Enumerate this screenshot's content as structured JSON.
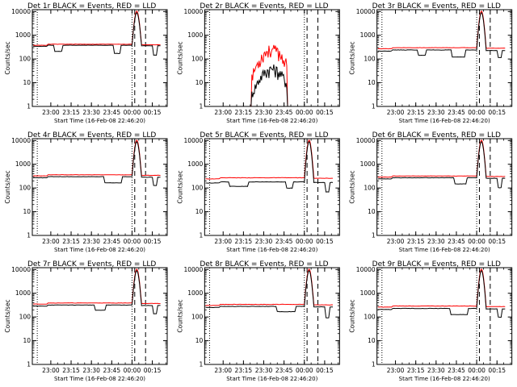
{
  "colors": {
    "events": "#000000",
    "lld": "#ff0000",
    "background": "#ffffff"
  },
  "chart_data": [
    {
      "type": "line",
      "title": "Det 1r  BLACK = Events, RED = LLD",
      "xlabel": "Start Time (16-Feb-08 22:46:20)",
      "ylabel": "Counts/sec",
      "log_y": true,
      "ylim": [
        1,
        12000
      ],
      "xlim": [
        "22:46:20",
        "00:26:00"
      ],
      "x_ticks": [
        "23:00",
        "23:15",
        "23:30",
        "23:45",
        "00:00",
        "00:15"
      ],
      "y_ticks": [
        "1",
        "10",
        "100",
        "1000",
        "10000"
      ],
      "series": [
        {
          "name": "Events",
          "color": "#000000"
        },
        {
          "name": "LLD",
          "color": "#ff0000"
        }
      ],
      "markers": {
        "dotted": [
          "22:50",
          "00:00"
        ],
        "dashed": [
          "00:02",
          "00:10"
        ]
      }
    },
    {
      "type": "line",
      "title": "Det 2r  BLACK = Events, RED = LLD",
      "xlabel": "Start Time (16-Feb-08 22:46:20)",
      "ylabel": "Counts/sec",
      "log_y": true,
      "ylim": [
        1,
        12000
      ],
      "xlim": [
        "22:46:20",
        "00:26:00"
      ],
      "x_ticks": [
        "23:00",
        "23:15",
        "23:30",
        "23:45",
        "00:00",
        "00:15"
      ],
      "y_ticks": [
        "1",
        "10",
        "100",
        "1000",
        "10000"
      ],
      "series": [
        {
          "name": "Events",
          "color": "#000000"
        },
        {
          "name": "LLD",
          "color": "#ff0000"
        }
      ],
      "markers": {
        "dotted": [
          "22:50",
          "00:00"
        ],
        "dashed": [
          "00:02",
          "00:10"
        ]
      }
    },
    {
      "type": "line",
      "title": "Det 3r  BLACK = Events, RED = LLD",
      "xlabel": "Start Time (16-Feb-08 22:46:20)",
      "ylabel": "Counts/sec",
      "log_y": true,
      "ylim": [
        1,
        12000
      ],
      "xlim": [
        "22:46:20",
        "00:26:00"
      ],
      "x_ticks": [
        "23:00",
        "23:15",
        "23:30",
        "23:45",
        "00:00",
        "00:15"
      ],
      "y_ticks": [
        "1",
        "10",
        "100",
        "1000",
        "10000"
      ],
      "series": [
        {
          "name": "Events",
          "color": "#000000"
        },
        {
          "name": "LLD",
          "color": "#ff0000"
        }
      ],
      "markers": {
        "dotted": [
          "22:50",
          "00:00"
        ],
        "dashed": [
          "00:02",
          "00:10"
        ]
      }
    },
    {
      "type": "line",
      "title": "Det 4r  BLACK = Events, RED = LLD",
      "xlabel": "Start Time (16-Feb-08 22:46:20)",
      "ylabel": "Counts/sec",
      "log_y": true,
      "ylim": [
        1,
        12000
      ],
      "xlim": [
        "22:46:20",
        "00:26:00"
      ],
      "x_ticks": [
        "23:00",
        "23:15",
        "23:30",
        "23:45",
        "00:00",
        "00:15"
      ],
      "y_ticks": [
        "1",
        "10",
        "100",
        "1000",
        "10000"
      ],
      "series": [
        {
          "name": "Events",
          "color": "#000000"
        },
        {
          "name": "LLD",
          "color": "#ff0000"
        }
      ],
      "markers": {
        "dotted": [
          "22:50",
          "00:00"
        ],
        "dashed": [
          "00:02",
          "00:10"
        ]
      }
    },
    {
      "type": "line",
      "title": "Det 5r  BLACK = Events, RED = LLD",
      "xlabel": "Start Time (16-Feb-08 22:46:20)",
      "ylabel": "Counts/sec",
      "log_y": true,
      "ylim": [
        1,
        12000
      ],
      "xlim": [
        "22:46:20",
        "00:26:00"
      ],
      "x_ticks": [
        "23:00",
        "23:15",
        "23:30",
        "23:45",
        "00:00",
        "00:15"
      ],
      "y_ticks": [
        "1",
        "10",
        "100",
        "1000",
        "10000"
      ],
      "series": [
        {
          "name": "Events",
          "color": "#000000"
        },
        {
          "name": "LLD",
          "color": "#ff0000"
        }
      ],
      "markers": {
        "dotted": [
          "22:50",
          "00:00"
        ],
        "dashed": [
          "00:02",
          "00:10"
        ]
      }
    },
    {
      "type": "line",
      "title": "Det 6r  BLACK = Events, RED = LLD",
      "xlabel": "Start Time (16-Feb-08 22:46:20)",
      "ylabel": "Counts/sec",
      "log_y": true,
      "ylim": [
        1,
        12000
      ],
      "xlim": [
        "22:46:20",
        "00:26:00"
      ],
      "x_ticks": [
        "23:00",
        "23:15",
        "23:30",
        "23:45",
        "00:00",
        "00:15"
      ],
      "y_ticks": [
        "1",
        "10",
        "100",
        "1000",
        "10000"
      ],
      "series": [
        {
          "name": "Events",
          "color": "#000000"
        },
        {
          "name": "LLD",
          "color": "#ff0000"
        }
      ],
      "markers": {
        "dotted": [
          "22:50",
          "00:00"
        ],
        "dashed": [
          "00:02",
          "00:10"
        ]
      }
    },
    {
      "type": "line",
      "title": "Det 7r  BLACK = Events, RED = LLD",
      "xlabel": "Start Time (16-Feb-08 22:46:20)",
      "ylabel": "Counts/sec",
      "log_y": true,
      "ylim": [
        1,
        12000
      ],
      "xlim": [
        "22:46:20",
        "00:26:00"
      ],
      "x_ticks": [
        "23:00",
        "23:15",
        "23:30",
        "23:45",
        "00:00",
        "00:15"
      ],
      "y_ticks": [
        "1",
        "10",
        "100",
        "1000",
        "10000"
      ],
      "series": [
        {
          "name": "Events",
          "color": "#000000"
        },
        {
          "name": "LLD",
          "color": "#ff0000"
        }
      ],
      "markers": {
        "dotted": [
          "22:50",
          "00:00"
        ],
        "dashed": [
          "00:02",
          "00:10"
        ]
      }
    },
    {
      "type": "line",
      "title": "Det 8r  BLACK = Events, RED = LLD",
      "xlabel": "Start Time (16-Feb-08 22:46:20)",
      "ylabel": "Counts/sec",
      "log_y": true,
      "ylim": [
        1,
        12000
      ],
      "xlim": [
        "22:46:20",
        "00:26:00"
      ],
      "x_ticks": [
        "23:00",
        "23:15",
        "23:30",
        "23:45",
        "00:00",
        "00:15"
      ],
      "y_ticks": [
        "1",
        "10",
        "100",
        "1000",
        "10000"
      ],
      "series": [
        {
          "name": "Events",
          "color": "#000000"
        },
        {
          "name": "LLD",
          "color": "#ff0000"
        }
      ],
      "markers": {
        "dotted": [
          "22:50",
          "00:00"
        ],
        "dashed": [
          "00:02",
          "00:10"
        ]
      }
    },
    {
      "type": "line",
      "title": "Det 9r  BLACK = Events, RED = LLD",
      "xlabel": "Start Time (16-Feb-08 22:46:20)",
      "ylabel": "Counts/sec",
      "log_y": true,
      "ylim": [
        1,
        12000
      ],
      "xlim": [
        "22:46:20",
        "00:26:00"
      ],
      "x_ticks": [
        "23:00",
        "23:15",
        "23:30",
        "23:45",
        "00:00",
        "00:15"
      ],
      "y_ticks": [
        "1",
        "10",
        "100",
        "1000",
        "10000"
      ],
      "series": [
        {
          "name": "Events",
          "color": "#000000"
        },
        {
          "name": "LLD",
          "color": "#ff0000"
        }
      ],
      "markers": {
        "dotted": [
          "22:50",
          "00:00"
        ],
        "dashed": [
          "00:02",
          "00:10"
        ]
      }
    }
  ]
}
